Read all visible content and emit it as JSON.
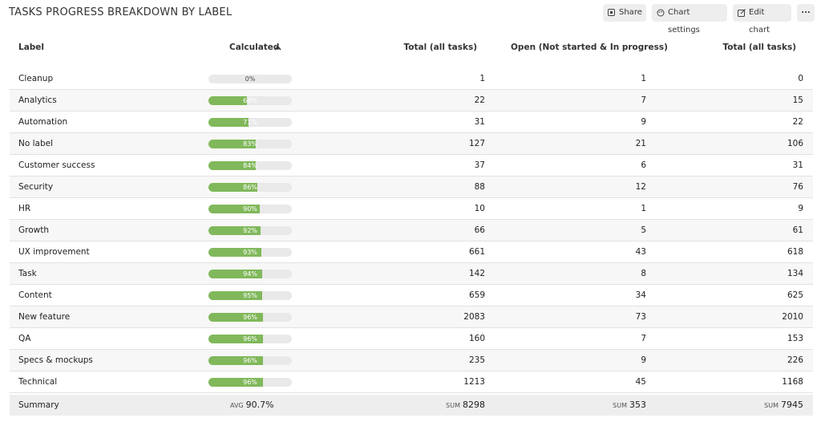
{
  "header": {
    "title": "TASKS PROGRESS BREAKDOWN BY LABEL",
    "buttons": [
      "Share",
      "Chart settings",
      "Edit chart",
      "..."
    ]
  },
  "table": {
    "columns": [
      "Label",
      "Calculated",
      "Total (all tasks)",
      "Open (Not started & In progress)",
      "Total (all tasks)"
    ],
    "rows": [
      {
        "label": "Cleanup",
        "calculated": {
          "value": 0,
          "label": "0%"
        },
        "total": 1,
        "open": 1,
        "total_all": 0
      },
      {
        "label": "Analytics",
        "calculated": {
          "value": 68,
          "label": "68%"
        },
        "total": 22,
        "open": 7,
        "total_all": 15
      },
      {
        "label": "Automation",
        "calculated": {
          "value": 71,
          "label": "71%"
        },
        "total": 31,
        "open": 9,
        "total_all": 22
      },
      {
        "label": "No label",
        "calculated": {
          "value": 83,
          "label": "83%"
        },
        "total": 127,
        "open": 21,
        "total_all": 106
      },
      {
        "label": "Customer success",
        "calculated": {
          "value": 84,
          "label": "84%"
        },
        "total": 37,
        "open": 6,
        "total_all": 31
      },
      {
        "label": "Security",
        "calculated": {
          "value": 86,
          "label": "86%"
        },
        "total": 88,
        "open": 12,
        "total_all": 76
      },
      {
        "label": "HR",
        "calculated": {
          "value": 90,
          "label": "90%"
        },
        "total": 10,
        "open": 1,
        "total_all": 9
      },
      {
        "label": "Growth",
        "calculated": {
          "value": 92,
          "label": "92%"
        },
        "total": 66,
        "open": 5,
        "total_all": 61
      },
      {
        "label": "UX improvement",
        "calculated": {
          "value": 93,
          "label": "93%"
        },
        "total": 661,
        "open": 43,
        "total_all": 618
      },
      {
        "label": "Task",
        "calculated": {
          "value": 94,
          "label": "94%"
        },
        "total": 142,
        "open": 8,
        "total_all": 134
      },
      {
        "label": "Content",
        "calculated": {
          "value": 95,
          "label": "95%"
        },
        "total": 659,
        "open": 34,
        "total_all": 625
      },
      {
        "label": "New feature",
        "calculated": {
          "value": 96,
          "label": "96%"
        },
        "total": 2083,
        "open": 73,
        "total_all": 2010
      },
      {
        "label": "QA",
        "calculated": {
          "value": 96,
          "label": "96%"
        },
        "total": 160,
        "open": 7,
        "total_all": 153
      },
      {
        "label": "Specs & mockups",
        "calculated": {
          "value": 96,
          "label": "96%"
        },
        "total": 235,
        "open": 9,
        "total_all": 226
      },
      {
        "label": "Technical",
        "calculated": {
          "value": 96,
          "label": "96%"
        },
        "total": 1213,
        "open": 45,
        "total_all": 1168
      }
    ],
    "summary": {
      "label": "Summary",
      "calculated": {
        "prefix": "AVG",
        "text": "90.7%"
      },
      "total": {
        "prefix": "SUM",
        "value": 8298
      },
      "open": {
        "prefix": "SUM",
        "value": 353
      },
      "total_all": {
        "prefix": "SUM",
        "value": 7945
      }
    }
  }
}
